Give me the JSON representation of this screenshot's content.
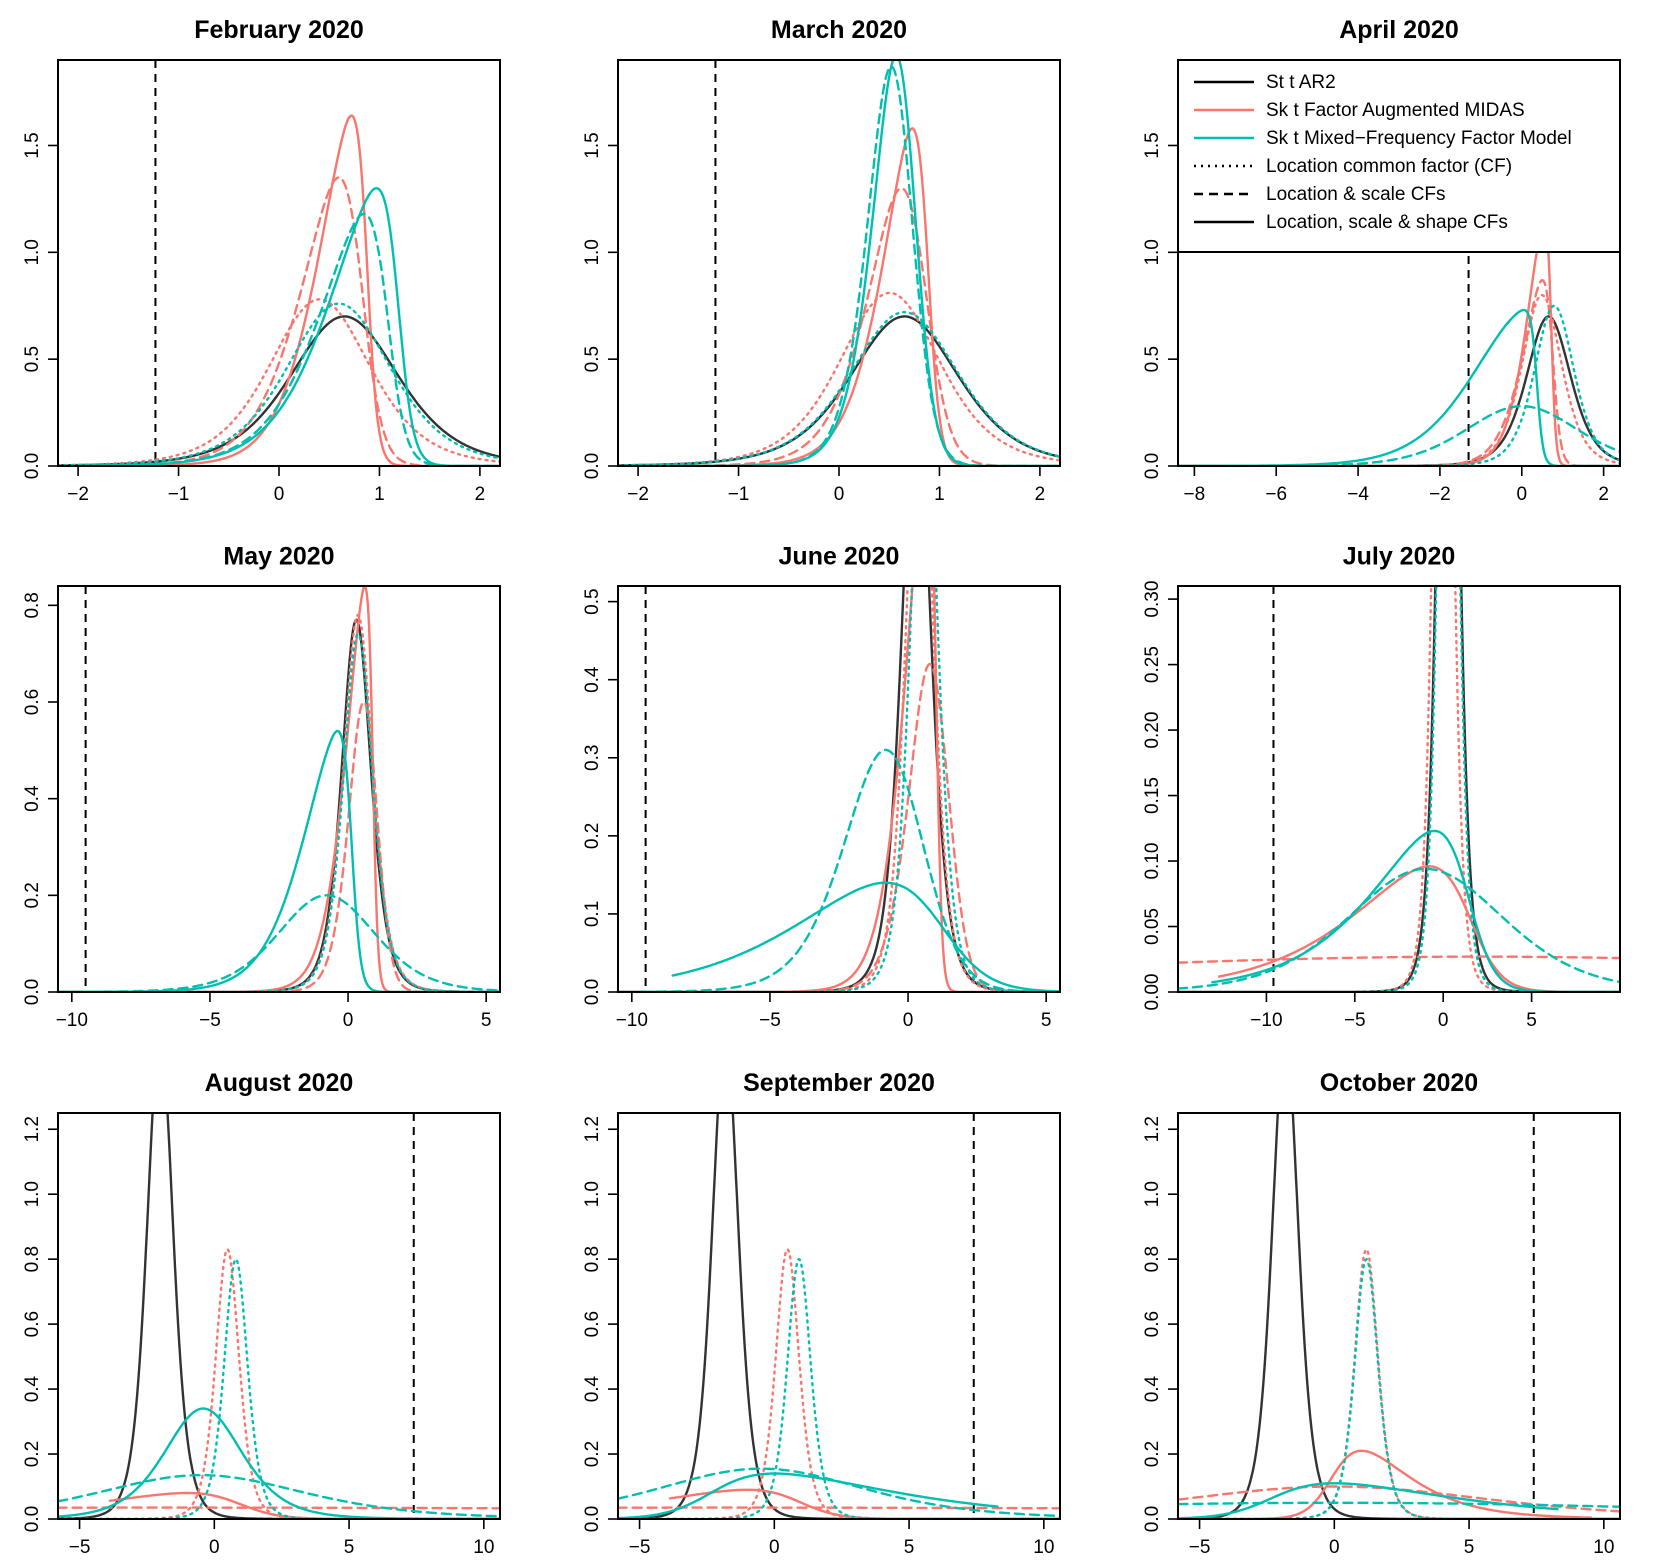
{
  "colors": {
    "ar2": "#333333",
    "midas": "#F8766D",
    "mfm": "#00BFB0",
    "obs": "#000000",
    "zero": "#BBBBBB"
  },
  "legend": {
    "entries": [
      {
        "label": "St t AR2",
        "color": "#000000",
        "style": "solid"
      },
      {
        "label": "Sk t Factor Augmented MIDAS",
        "color": "#F8766D",
        "style": "solid"
      },
      {
        "label": "Sk t Mixed−Frequency Factor Model",
        "color": "#00BFB0",
        "style": "solid"
      },
      {
        "label": "Location common factor (CF)",
        "color": "#000000",
        "style": "dotted"
      },
      {
        "label": "Location & scale CFs",
        "color": "#000000",
        "style": "dashed"
      },
      {
        "label": "Location, scale & shape CFs",
        "color": "#000000",
        "style": "solid"
      }
    ]
  },
  "chart_data": [
    {
      "type": "line",
      "title": "February 2020",
      "xlim": [
        -2.2,
        2.2
      ],
      "ylim": [
        0,
        1.9
      ],
      "xticks": [
        -2,
        -1,
        0,
        1,
        2
      ],
      "yticks": [
        0,
        0.5,
        1,
        1.5
      ],
      "ytick_labels": [
        "0.0",
        "0.5",
        "1.0",
        "1.5"
      ],
      "observed": -1.23,
      "series": [
        {
          "model": "ar2",
          "style": "solid",
          "peak_x": 0.65,
          "peak_y": 0.7,
          "scale": 0.56,
          "df": 5,
          "skew": 0
        },
        {
          "model": "midas",
          "style": "solid",
          "peak_x": 0.72,
          "peak_y": 1.64,
          "scale": 0.44,
          "df": 10,
          "skew": -5
        },
        {
          "model": "midas",
          "style": "dashed",
          "peak_x": 0.6,
          "peak_y": 1.35,
          "scale": 0.52,
          "df": 10,
          "skew": -3
        },
        {
          "model": "midas",
          "style": "dotted",
          "peak_x": 0.4,
          "peak_y": 0.78,
          "scale": 0.52,
          "df": 5,
          "skew": 0
        },
        {
          "model": "mfm",
          "style": "solid",
          "peak_x": 0.97,
          "peak_y": 1.3,
          "scale": 0.62,
          "df": 10,
          "skew": -5
        },
        {
          "model": "mfm",
          "style": "dashed",
          "peak_x": 0.85,
          "peak_y": 1.18,
          "scale": 0.6,
          "df": 10,
          "skew": -4
        },
        {
          "model": "mfm",
          "style": "dotted",
          "peak_x": 0.6,
          "peak_y": 0.76,
          "scale": 0.54,
          "df": 5,
          "skew": 0
        }
      ]
    },
    {
      "type": "line",
      "title": "March 2020",
      "xlim": [
        -2.2,
        2.2
      ],
      "ylim": [
        0,
        1.9
      ],
      "xticks": [
        -2,
        -1,
        0,
        1,
        2
      ],
      "yticks": [
        0,
        0.5,
        1,
        1.5
      ],
      "ytick_labels": [
        "0.0",
        "0.5",
        "1.0",
        "1.5"
      ],
      "observed": -1.23,
      "series": [
        {
          "model": "ar2",
          "style": "solid",
          "peak_x": 0.65,
          "peak_y": 0.7,
          "scale": 0.56,
          "df": 5,
          "skew": 0
        },
        {
          "model": "midas",
          "style": "solid",
          "peak_x": 0.73,
          "peak_y": 1.58,
          "scale": 0.4,
          "df": 10,
          "skew": -4
        },
        {
          "model": "midas",
          "style": "dashed",
          "peak_x": 0.62,
          "peak_y": 1.3,
          "scale": 0.45,
          "df": 10,
          "skew": -2
        },
        {
          "model": "midas",
          "style": "dotted",
          "peak_x": 0.5,
          "peak_y": 0.81,
          "scale": 0.52,
          "df": 5,
          "skew": 0
        },
        {
          "model": "mfm",
          "style": "solid",
          "peak_x": 0.57,
          "peak_y": 1.92,
          "scale": 0.3,
          "df": 10,
          "skew": -1.5
        },
        {
          "model": "mfm",
          "style": "dashed",
          "peak_x": 0.52,
          "peak_y": 1.87,
          "scale": 0.28,
          "df": 10,
          "skew": -1
        },
        {
          "model": "mfm",
          "style": "dotted",
          "peak_x": 0.65,
          "peak_y": 0.72,
          "scale": 0.56,
          "df": 5,
          "skew": 0
        }
      ]
    },
    {
      "type": "line",
      "title": "April 2020",
      "xlim": [
        -8.4,
        2.4
      ],
      "ylim": [
        0,
        1.9
      ],
      "xticks": [
        -8,
        -6,
        -4,
        -2,
        0,
        2
      ],
      "yticks": [
        0,
        0.5,
        1,
        1.5
      ],
      "ytick_labels": [
        "0.0",
        "0.5",
        "1.0",
        "1.5"
      ],
      "observed": -1.3,
      "series": [
        {
          "model": "ar2",
          "style": "solid",
          "peak_x": 0.65,
          "peak_y": 0.7,
          "scale": 0.56,
          "df": 5,
          "skew": 0
        },
        {
          "model": "midas",
          "style": "solid",
          "peak_x": 0.55,
          "peak_y": 1.15,
          "scale": 0.55,
          "df": 10,
          "skew": -6
        },
        {
          "model": "midas",
          "style": "dashed",
          "peak_x": 0.5,
          "peak_y": 0.87,
          "scale": 0.65,
          "df": 10,
          "skew": -4
        },
        {
          "model": "midas",
          "style": "dotted",
          "peak_x": 0.5,
          "peak_y": 0.8,
          "scale": 0.5,
          "df": 5,
          "skew": 0
        },
        {
          "model": "mfm",
          "style": "solid",
          "peak_x": 0.05,
          "peak_y": 0.73,
          "scale": 1.5,
          "df": 10,
          "skew": -12
        },
        {
          "model": "mfm",
          "style": "dashed",
          "peak_x": 0.0,
          "peak_y": 0.28,
          "scale": 1.4,
          "df": 10,
          "skew": 0
        },
        {
          "model": "mfm",
          "style": "dotted",
          "peak_x": 0.8,
          "peak_y": 0.75,
          "scale": 0.5,
          "df": 5,
          "skew": 0
        }
      ]
    },
    {
      "type": "line",
      "title": "May 2020",
      "xlim": [
        -10.5,
        5.5
      ],
      "ylim": [
        0,
        0.84
      ],
      "xticks": [
        -10,
        -5,
        0,
        5
      ],
      "yticks": [
        0,
        0.2,
        0.4,
        0.6,
        0.8
      ],
      "ytick_labels": [
        "0.0",
        "0.2",
        "0.4",
        "0.6",
        "0.8"
      ],
      "observed": -9.5,
      "series": [
        {
          "model": "ar2",
          "style": "solid",
          "peak_x": 0.3,
          "peak_y": 0.77,
          "scale": 0.55,
          "df": 5,
          "skew": 0
        },
        {
          "model": "midas",
          "style": "solid",
          "peak_x": 0.6,
          "peak_y": 0.84,
          "scale": 0.9,
          "df": 10,
          "skew": -6
        },
        {
          "model": "midas",
          "style": "dashed",
          "peak_x": 0.55,
          "peak_y": 0.6,
          "scale": 0.65,
          "df": 10,
          "skew": -1
        },
        {
          "model": "midas",
          "style": "dotted",
          "peak_x": 0.35,
          "peak_y": 0.78,
          "scale": 0.55,
          "df": 5,
          "skew": 0
        },
        {
          "model": "mfm",
          "style": "solid",
          "peak_x": -0.4,
          "peak_y": 0.54,
          "scale": 1.6,
          "df": 10,
          "skew": -6
        },
        {
          "model": "mfm",
          "style": "dashed",
          "peak_x": -0.8,
          "peak_y": 0.2,
          "scale": 1.8,
          "df": 8,
          "skew": 0
        },
        {
          "model": "mfm",
          "style": "dotted",
          "peak_x": 0.35,
          "peak_y": 0.74,
          "scale": 0.55,
          "df": 5,
          "skew": 0
        }
      ]
    },
    {
      "type": "line",
      "title": "June 2020",
      "xlim": [
        -10.5,
        5.5
      ],
      "ylim": [
        0,
        0.52
      ],
      "xticks": [
        -10,
        -5,
        0,
        5
      ],
      "yticks": [
        0,
        0.1,
        0.2,
        0.3,
        0.4,
        0.5
      ],
      "ytick_labels": [
        "0.0",
        "0.1",
        "0.2",
        "0.3",
        "0.4",
        "0.5"
      ],
      "observed": -9.5,
      "series": [
        {
          "model": "ar2",
          "style": "solid",
          "peak_x": 0.3,
          "peak_y": 0.77,
          "scale": 0.55,
          "df": 5,
          "skew": 0
        },
        {
          "model": "midas",
          "style": "solid",
          "peak_x": 0.7,
          "peak_y": 0.7,
          "scale": 1.0,
          "df": 10,
          "skew": -6
        },
        {
          "model": "midas",
          "style": "dashed",
          "peak_x": 0.8,
          "peak_y": 0.42,
          "scale": 0.9,
          "df": 10,
          "skew": -1
        },
        {
          "model": "midas",
          "style": "dotted",
          "peak_x": 0.4,
          "peak_y": 0.8,
          "scale": 0.5,
          "df": 5,
          "skew": 0
        },
        {
          "model": "mfm",
          "style": "solid",
          "peak_x": -0.8,
          "peak_y": 0.14,
          "scale": 4.5,
          "df": 10,
          "skew": -3
        },
        {
          "model": "mfm",
          "style": "dashed",
          "peak_x": -0.8,
          "peak_y": 0.31,
          "scale": 1.8,
          "df": 10,
          "skew": -1
        },
        {
          "model": "mfm",
          "style": "dotted",
          "peak_x": 0.6,
          "peak_y": 0.8,
          "scale": 0.5,
          "df": 5,
          "skew": 0
        }
      ]
    },
    {
      "type": "line",
      "title": "July 2020",
      "xlim": [
        -15,
        10
      ],
      "ylim": [
        0,
        0.31
      ],
      "xticks": [
        -10,
        -5,
        0,
        5
      ],
      "yticks": [
        0,
        0.05,
        0.1,
        0.15,
        0.2,
        0.25,
        0.3
      ],
      "ytick_labels": [
        "0.00",
        "0.05",
        "0.10",
        "0.15",
        "0.20",
        "0.25",
        "0.30"
      ],
      "observed": -9.6,
      "series": [
        {
          "model": "ar2",
          "style": "solid",
          "peak_x": 0.3,
          "peak_y": 0.77,
          "scale": 0.55,
          "df": 5,
          "skew": 0
        },
        {
          "model": "midas",
          "style": "solid",
          "peak_x": -0.8,
          "peak_y": 0.096,
          "scale": 6.0,
          "df": 5,
          "skew": -4
        },
        {
          "model": "midas",
          "style": "dashed",
          "peak_x": 2.0,
          "peak_y": 0.027,
          "scale": 30.0,
          "df": 5,
          "skew": 0
        },
        {
          "model": "midas",
          "style": "dotted",
          "peak_x": 0.0,
          "peak_y": 0.8,
          "scale": 0.5,
          "df": 5,
          "skew": 0
        },
        {
          "model": "mfm",
          "style": "solid",
          "peak_x": -0.5,
          "peak_y": 0.123,
          "scale": 5.0,
          "df": 5,
          "skew": -4
        },
        {
          "model": "mfm",
          "style": "dashed",
          "peak_x": -1.0,
          "peak_y": 0.094,
          "scale": 4.5,
          "df": 8,
          "skew": 0
        },
        {
          "model": "mfm",
          "style": "dotted",
          "peak_x": 0.3,
          "peak_y": 0.8,
          "scale": 0.5,
          "df": 5,
          "skew": 0
        }
      ]
    },
    {
      "type": "line",
      "title": "August 2020",
      "xlim": [
        -5.8,
        10.6
      ],
      "ylim": [
        0,
        1.25
      ],
      "xticks": [
        -5,
        0,
        5,
        10
      ],
      "yticks": [
        0,
        0.2,
        0.4,
        0.6,
        0.8,
        1,
        1.2
      ],
      "ytick_labels": [
        "0.0",
        "0.2",
        "0.4",
        "0.6",
        "0.8",
        "1.0",
        "1.2"
      ],
      "observed": 7.4,
      "series": [
        {
          "model": "ar2",
          "style": "solid",
          "peak_x": -2.0,
          "peak_y": 1.5,
          "scale": 0.5,
          "df": 5,
          "skew": 0
        },
        {
          "model": "midas",
          "style": "solid",
          "peak_x": -1.0,
          "peak_y": 0.08,
          "scale": 5.0,
          "df": 5,
          "skew": -4
        },
        {
          "model": "midas",
          "style": "dashed",
          "peak_x": -2.0,
          "peak_y": 0.035,
          "scale": 40.0,
          "df": 5,
          "skew": 0
        },
        {
          "model": "midas",
          "style": "dotted",
          "peak_x": 0.5,
          "peak_y": 0.83,
          "scale": 0.45,
          "df": 5,
          "skew": 0
        },
        {
          "model": "mfm",
          "style": "solid",
          "peak_x": -0.4,
          "peak_y": 0.34,
          "scale": 1.5,
          "df": 5,
          "skew": 0
        },
        {
          "model": "mfm",
          "style": "dashed",
          "peak_x": -0.5,
          "peak_y": 0.135,
          "scale": 4.0,
          "df": 5,
          "skew": 0
        },
        {
          "model": "mfm",
          "style": "dotted",
          "peak_x": 0.8,
          "peak_y": 0.8,
          "scale": 0.45,
          "df": 5,
          "skew": 0
        }
      ]
    },
    {
      "type": "line",
      "title": "September 2020",
      "xlim": [
        -5.8,
        10.6
      ],
      "ylim": [
        0,
        1.25
      ],
      "xticks": [
        -5,
        0,
        5,
        10
      ],
      "yticks": [
        0,
        0.2,
        0.4,
        0.6,
        0.8,
        1,
        1.2
      ],
      "ytick_labels": [
        "0.0",
        "0.2",
        "0.4",
        "0.6",
        "0.8",
        "1.0",
        "1.2"
      ],
      "observed": 7.4,
      "series": [
        {
          "model": "ar2",
          "style": "solid",
          "peak_x": -1.8,
          "peak_y": 1.5,
          "scale": 0.5,
          "df": 5,
          "skew": 0
        },
        {
          "model": "midas",
          "style": "solid",
          "peak_x": -1.0,
          "peak_y": 0.09,
          "scale": 5.0,
          "df": 5,
          "skew": -4
        },
        {
          "model": "midas",
          "style": "dashed",
          "peak_x": -2.0,
          "peak_y": 0.035,
          "scale": 40.0,
          "df": 5,
          "skew": 0
        },
        {
          "model": "midas",
          "style": "dotted",
          "peak_x": 0.5,
          "peak_y": 0.83,
          "scale": 0.45,
          "df": 5,
          "skew": 0
        },
        {
          "model": "mfm",
          "style": "solid",
          "peak_x": 0.0,
          "peak_y": 0.14,
          "scale": 6.0,
          "df": 5,
          "skew": 4
        },
        {
          "model": "mfm",
          "style": "dashed",
          "peak_x": -0.5,
          "peak_y": 0.155,
          "scale": 4.0,
          "df": 5,
          "skew": 0
        },
        {
          "model": "mfm",
          "style": "dotted",
          "peak_x": 0.9,
          "peak_y": 0.8,
          "scale": 0.45,
          "df": 5,
          "skew": 0
        }
      ]
    },
    {
      "type": "line",
      "title": "October 2020",
      "xlim": [
        -5.8,
        10.6
      ],
      "ylim": [
        0,
        1.25
      ],
      "xticks": [
        -5,
        0,
        5,
        10
      ],
      "yticks": [
        0,
        0.2,
        0.4,
        0.6,
        0.8,
        1,
        1.2
      ],
      "ytick_labels": [
        "0.0",
        "0.2",
        "0.4",
        "0.6",
        "0.8",
        "1.0",
        "1.2"
      ],
      "observed": 7.4,
      "series": [
        {
          "model": "ar2",
          "style": "solid",
          "peak_x": -1.8,
          "peak_y": 1.5,
          "scale": 0.5,
          "df": 5,
          "skew": 0
        },
        {
          "model": "midas",
          "style": "solid",
          "peak_x": 1.0,
          "peak_y": 0.21,
          "scale": 2.5,
          "df": 5,
          "skew": 3
        },
        {
          "model": "midas",
          "style": "dashed",
          "peak_x": 0.0,
          "peak_y": 0.1,
          "scale": 6.0,
          "df": 5,
          "skew": 0
        },
        {
          "model": "midas",
          "style": "dotted",
          "peak_x": 1.2,
          "peak_y": 0.83,
          "scale": 0.45,
          "df": 5,
          "skew": 0
        },
        {
          "model": "mfm",
          "style": "solid",
          "peak_x": 0.0,
          "peak_y": 0.11,
          "scale": 6.0,
          "df": 5,
          "skew": 4
        },
        {
          "model": "mfm",
          "style": "dashed",
          "peak_x": 0.0,
          "peak_y": 0.05,
          "scale": 15.0,
          "df": 5,
          "skew": 0
        },
        {
          "model": "mfm",
          "style": "dotted",
          "peak_x": 1.2,
          "peak_y": 0.8,
          "scale": 0.45,
          "df": 5,
          "skew": 0
        }
      ]
    }
  ]
}
